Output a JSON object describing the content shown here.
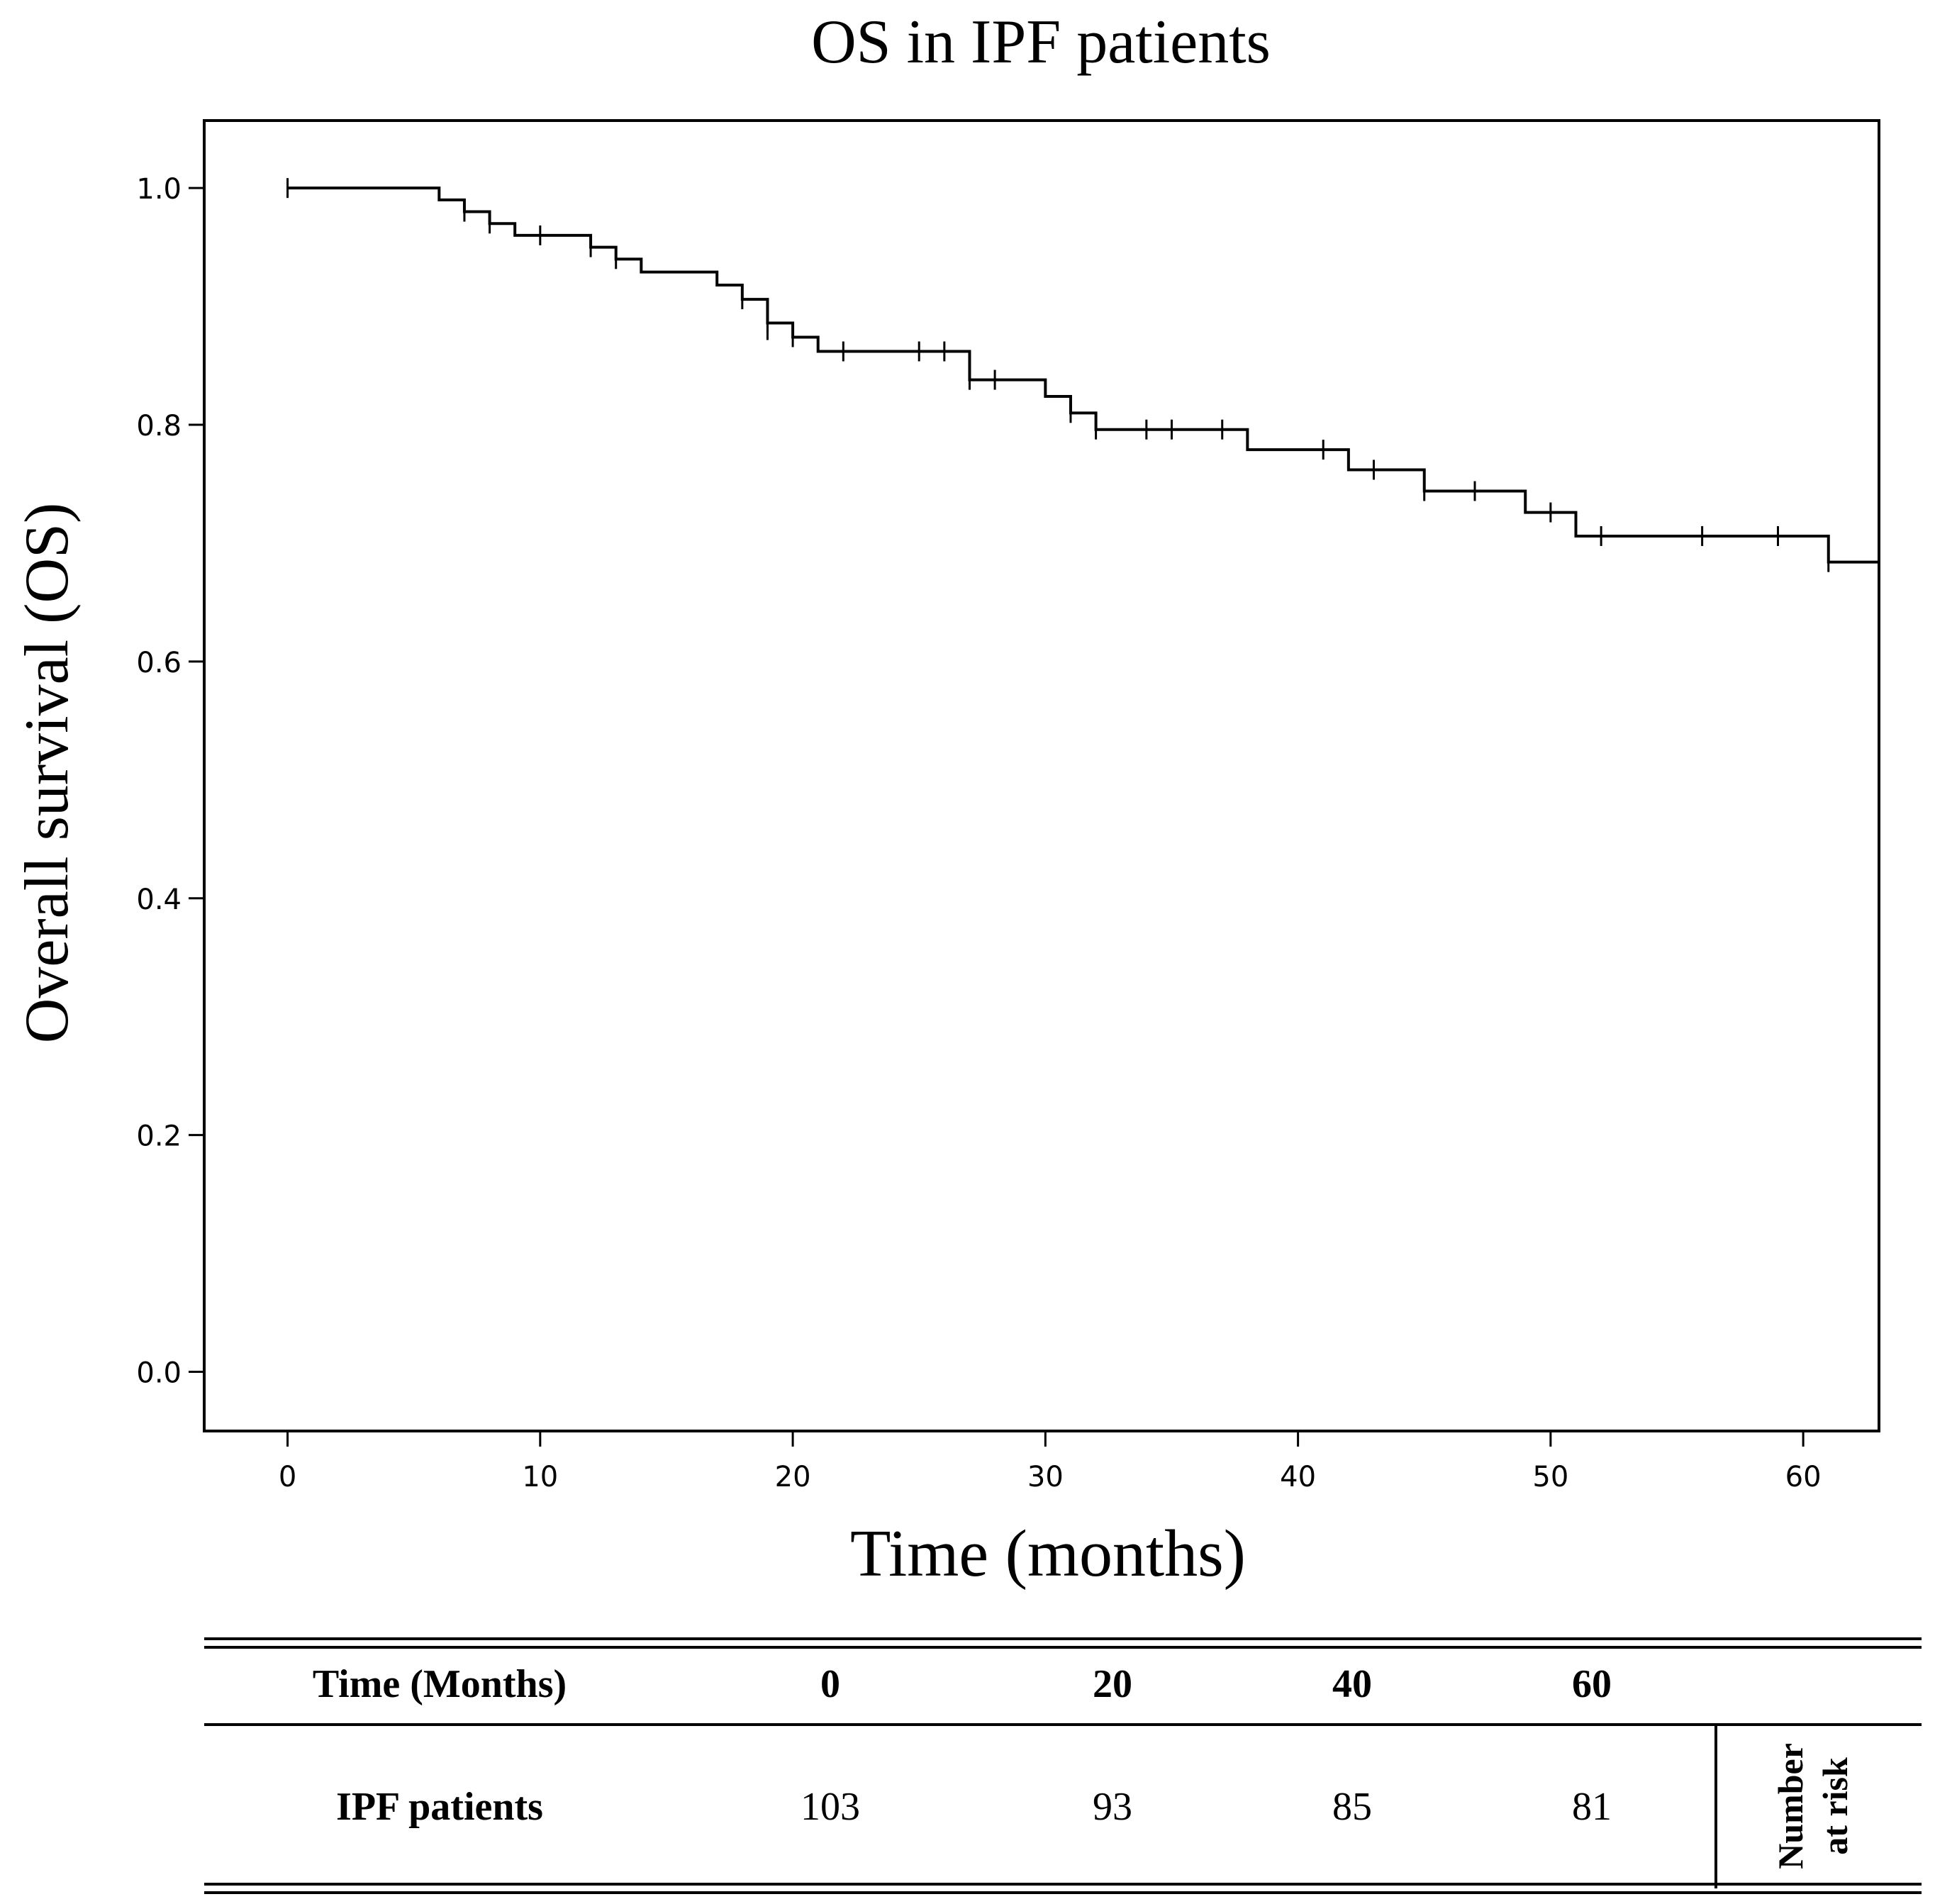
{
  "chart_data": {
    "type": "line",
    "subtype": "kaplan-meier",
    "title": "OS in IPF patients",
    "xlabel": "Time (months)",
    "ylabel": "Overall survival (OS)",
    "xlim": [
      -3.3,
      63
    ],
    "ylim": [
      -0.05,
      1.057
    ],
    "x_ticks": [
      0,
      10,
      20,
      30,
      40,
      50,
      60
    ],
    "x_tick_labels": [
      "0",
      "10",
      "20",
      "30",
      "40",
      "50",
      "60"
    ],
    "y_ticks": [
      0.0,
      0.2,
      0.4,
      0.6,
      0.8,
      1.0
    ],
    "y_tick_labels": [
      "0.0",
      "0.2",
      "0.4",
      "0.6",
      "0.8",
      "1.0"
    ],
    "grid": false,
    "series": [
      {
        "name": "IPF patients",
        "color": "#000000",
        "steps": [
          [
            0,
            1.0
          ],
          [
            6,
            0.99
          ],
          [
            7,
            0.98
          ],
          [
            8,
            0.97
          ],
          [
            9,
            0.96
          ],
          [
            12,
            0.95
          ],
          [
            13,
            0.94
          ],
          [
            14,
            0.929
          ],
          [
            17,
            0.918
          ],
          [
            18,
            0.906
          ],
          [
            19,
            0.886
          ],
          [
            20,
            0.874
          ],
          [
            21,
            0.862
          ],
          [
            27,
            0.838
          ],
          [
            30,
            0.824
          ],
          [
            31,
            0.81
          ],
          [
            32,
            0.796
          ],
          [
            38,
            0.779
          ],
          [
            42,
            0.762
          ],
          [
            45,
            0.744
          ],
          [
            49,
            0.726
          ],
          [
            51,
            0.706
          ],
          [
            61,
            0.684
          ],
          [
            63,
            0.684
          ]
        ],
        "censored": [
          [
            0,
            1.0
          ],
          [
            7,
            0.98
          ],
          [
            8,
            0.97
          ],
          [
            10,
            0.96
          ],
          [
            12,
            0.95
          ],
          [
            13,
            0.94
          ],
          [
            18,
            0.906
          ],
          [
            19,
            0.886
          ],
          [
            19,
            0.88
          ],
          [
            20,
            0.874
          ],
          [
            22,
            0.862
          ],
          [
            25,
            0.862
          ],
          [
            26,
            0.862
          ],
          [
            27,
            0.838
          ],
          [
            27,
            0.838
          ],
          [
            28,
            0.838
          ],
          [
            31,
            0.81
          ],
          [
            32,
            0.796
          ],
          [
            34,
            0.796
          ],
          [
            35,
            0.796
          ],
          [
            37,
            0.796
          ],
          [
            41,
            0.779
          ],
          [
            43,
            0.762
          ],
          [
            45,
            0.744
          ],
          [
            47,
            0.744
          ],
          [
            50,
            0.726
          ],
          [
            52,
            0.706
          ],
          [
            56,
            0.706
          ],
          [
            59,
            0.706
          ],
          [
            61,
            0.684
          ],
          [
            63,
            0.684
          ]
        ]
      }
    ]
  },
  "risk_table": {
    "header_label": "Time (Months)",
    "times": [
      "0",
      "20",
      "40",
      "60"
    ],
    "row_label": "IPF patients",
    "values": [
      "103",
      "93",
      "85",
      "81"
    ],
    "side_label_line1": "Number",
    "side_label_line2": "at risk"
  }
}
